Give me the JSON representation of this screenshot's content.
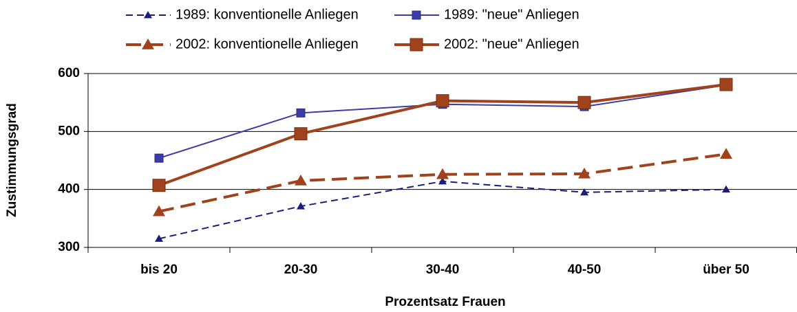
{
  "chart_data": {
    "type": "line",
    "categories": [
      "bis 20",
      "20-30",
      "30-40",
      "40-50",
      "über 50"
    ],
    "series": [
      {
        "name": "1989: konventionelle Anliegen",
        "color": "#1c1c7c",
        "marker": "triangle",
        "dashed": true,
        "linewidth": 2,
        "values": [
          315,
          371,
          414,
          395,
          400
        ]
      },
      {
        "name": "1989: \"neue\" Anliegen",
        "color": "#3c3ca4",
        "marker": "square",
        "dashed": false,
        "linewidth": 2,
        "values": [
          454,
          532,
          547,
          543,
          580
        ]
      },
      {
        "name": "2002: konventionelle Anliegen",
        "color": "#a0421c",
        "marker": "triangle",
        "dashed": true,
        "linewidth": 4,
        "values": [
          362,
          415,
          426,
          427,
          461
        ]
      },
      {
        "name": "2002: \"neue\" Anliegen",
        "color": "#a0421c",
        "marker": "square",
        "dashed": false,
        "linewidth": 4,
        "values": [
          407,
          496,
          553,
          550,
          581
        ]
      }
    ],
    "ylim": [
      300,
      600
    ],
    "yticks": [
      300,
      400,
      500,
      600
    ],
    "grid": true,
    "xlabel": "Prozentsatz Frauen",
    "ylabel": "Zustimmungsgrad",
    "legend": "top"
  }
}
